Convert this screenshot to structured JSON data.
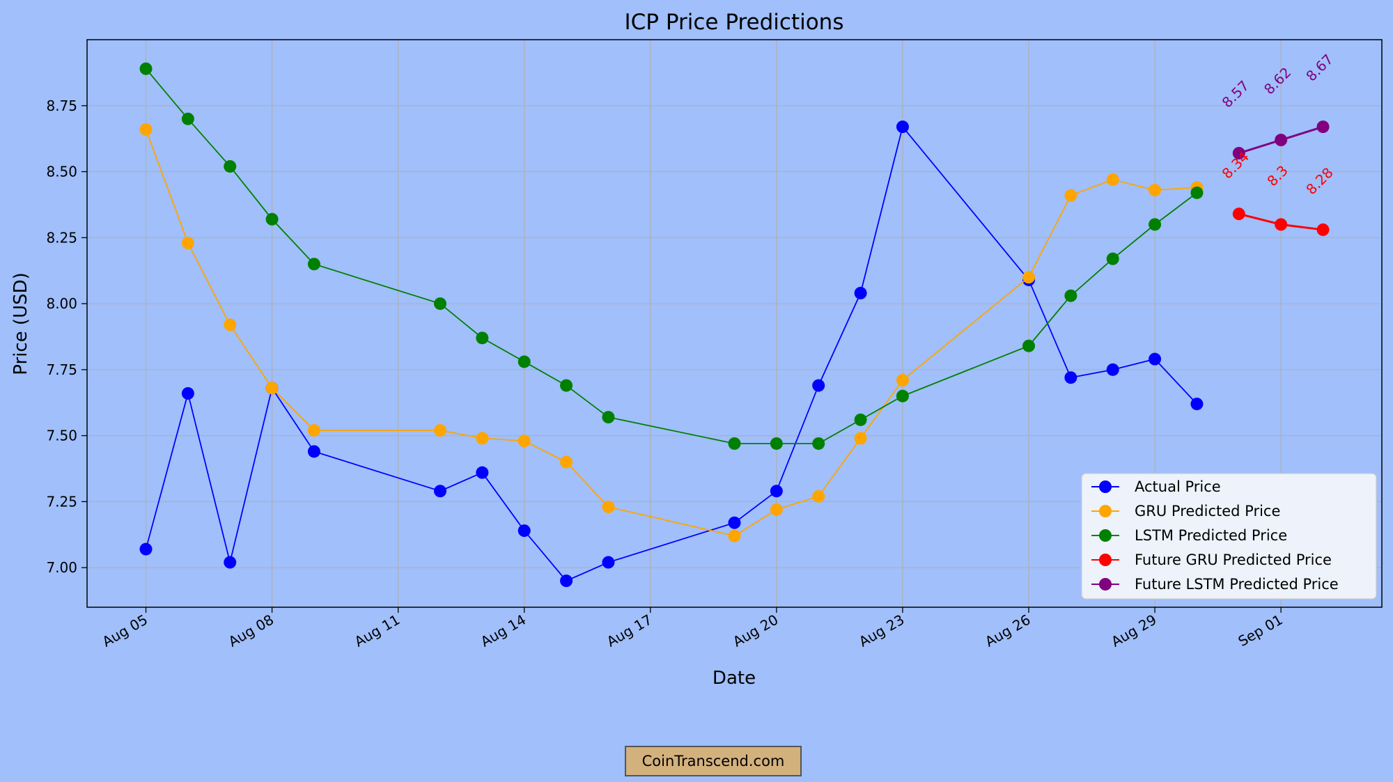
{
  "chart_data": {
    "type": "line",
    "title": "ICP Price Predictions",
    "xlabel": "Date",
    "ylabel": "Price (USD)",
    "x_tick_labels": [
      "Aug 05",
      "Aug 08",
      "Aug 11",
      "Aug 14",
      "Aug 17",
      "Aug 20",
      "Aug 23",
      "Aug 26",
      "Aug 29",
      "Sep 01"
    ],
    "x_tick_days": [
      0,
      3,
      6,
      9,
      12,
      15,
      18,
      21,
      24,
      27
    ],
    "y_tick_labels": [
      "7.00",
      "7.25",
      "7.50",
      "7.75",
      "8.00",
      "8.25",
      "8.50",
      "8.75"
    ],
    "y_tick_values": [
      7.0,
      7.25,
      7.5,
      7.75,
      8.0,
      8.25,
      8.5,
      8.75
    ],
    "xlim": [
      -1.4,
      29.4
    ],
    "ylim": [
      6.85,
      9.0
    ],
    "grid": true,
    "legend_position": "lower-right",
    "series": [
      {
        "name": "Actual Price",
        "color": "#0000ff",
        "days": [
          0,
          1,
          2,
          3,
          4,
          7,
          8,
          9,
          10,
          11,
          14,
          15,
          16,
          17,
          18,
          21,
          22,
          23,
          24,
          25
        ],
        "values": [
          7.07,
          7.66,
          7.02,
          7.68,
          7.44,
          7.29,
          7.36,
          7.14,
          6.95,
          7.02,
          7.17,
          7.29,
          7.69,
          8.04,
          8.67,
          8.09,
          7.72,
          7.75,
          7.79,
          7.62
        ]
      },
      {
        "name": "GRU Predicted Price",
        "color": "#ffa500",
        "days": [
          0,
          1,
          2,
          3,
          4,
          7,
          8,
          9,
          10,
          11,
          14,
          15,
          16,
          17,
          18,
          21,
          22,
          23,
          24,
          25
        ],
        "values": [
          8.66,
          8.23,
          7.92,
          7.68,
          7.52,
          7.52,
          7.49,
          7.48,
          7.4,
          7.23,
          7.12,
          7.22,
          7.27,
          7.49,
          7.71,
          8.1,
          8.41,
          8.47,
          8.43,
          8.44
        ]
      },
      {
        "name": "LSTM Predicted Price",
        "color": "#008000",
        "days": [
          0,
          1,
          2,
          3,
          4,
          7,
          8,
          9,
          10,
          11,
          14,
          15,
          16,
          17,
          18,
          21,
          22,
          23,
          24,
          25
        ],
        "values": [
          8.89,
          8.7,
          8.52,
          8.32,
          8.15,
          8.0,
          7.87,
          7.78,
          7.69,
          7.57,
          7.47,
          7.47,
          7.47,
          7.56,
          7.65,
          7.84,
          8.03,
          8.17,
          8.3,
          8.42
        ]
      },
      {
        "name": "Future GRU Predicted Price",
        "color": "#ff0000",
        "days": [
          26,
          27,
          28
        ],
        "values": [
          8.34,
          8.3,
          8.28
        ],
        "annotations": [
          "8.34",
          "8.3",
          "8.28"
        ]
      },
      {
        "name": "Future LSTM Predicted Price",
        "color": "#800080",
        "days": [
          26,
          27,
          28
        ],
        "values": [
          8.57,
          8.62,
          8.67
        ],
        "annotations": [
          "8.57",
          "8.62",
          "8.67"
        ]
      }
    ]
  },
  "watermark": "CoinTranscend.com"
}
